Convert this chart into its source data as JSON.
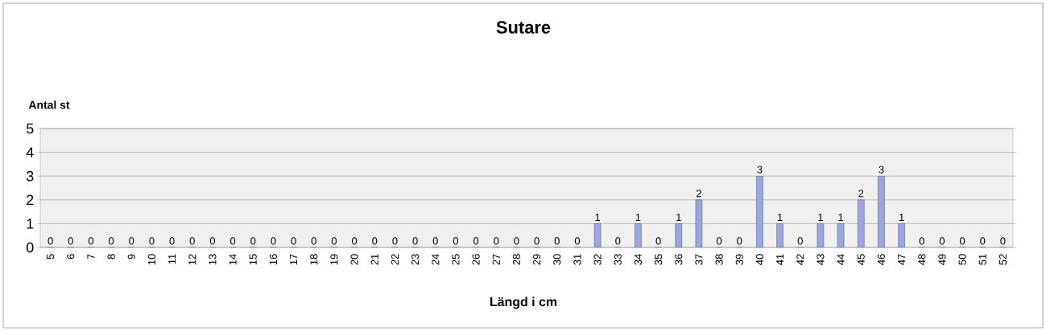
{
  "chart_data": {
    "type": "bar",
    "title": "Sutare",
    "xlabel": "Längd i cm",
    "ylabel": "Antal st",
    "categories": [
      "5",
      "6",
      "7",
      "8",
      "9",
      "10",
      "11",
      "12",
      "13",
      "14",
      "15",
      "16",
      "17",
      "18",
      "19",
      "20",
      "21",
      "22",
      "23",
      "24",
      "25",
      "26",
      "27",
      "28",
      "29",
      "30",
      "31",
      "32",
      "33",
      "34",
      "35",
      "36",
      "37",
      "38",
      "39",
      "40",
      "41",
      "42",
      "43",
      "44",
      "45",
      "46",
      "47",
      "48",
      "49",
      "50",
      "51",
      "52"
    ],
    "values": [
      0,
      0,
      0,
      0,
      0,
      0,
      0,
      0,
      0,
      0,
      0,
      0,
      0,
      0,
      0,
      0,
      0,
      0,
      0,
      0,
      0,
      0,
      0,
      0,
      0,
      0,
      0,
      1,
      0,
      1,
      0,
      1,
      2,
      0,
      0,
      3,
      1,
      0,
      1,
      1,
      2,
      3,
      1,
      0,
      0,
      0,
      0,
      0
    ],
    "color": "#9aa6e6",
    "ylim": [
      0,
      5
    ],
    "yticks": [
      0,
      1,
      2,
      3,
      4,
      5
    ],
    "grid": "y",
    "data_labels": true
  }
}
